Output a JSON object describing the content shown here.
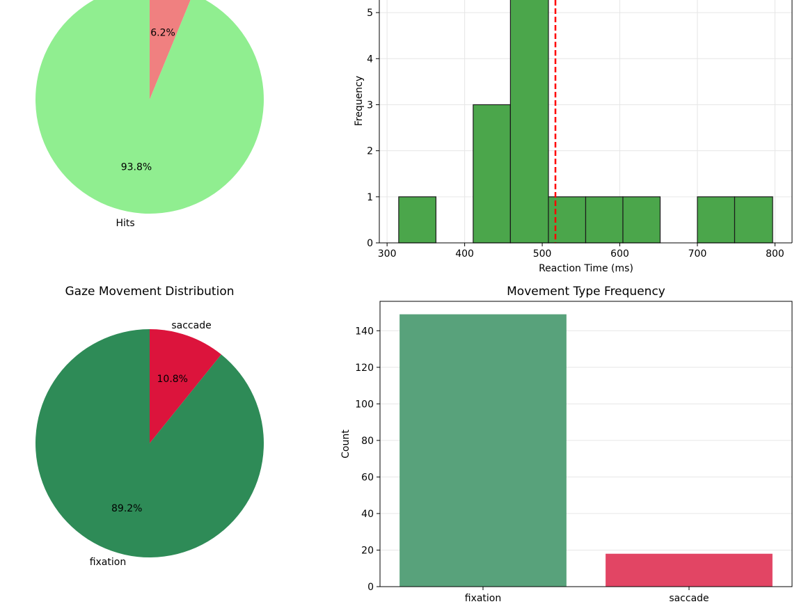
{
  "chart_data": [
    {
      "type": "pie",
      "title": "",
      "slices": [
        {
          "label": "Hits",
          "value": 93.8,
          "pct_label": "93.8%",
          "color": "#90ee90"
        },
        {
          "label": "",
          "value": 6.2,
          "pct_label": "6.2%",
          "color": "#f08080"
        }
      ]
    },
    {
      "type": "bar",
      "subtype": "histogram",
      "title": "",
      "xlabel": "Reaction Time (ms)",
      "ylabel": "Frequency",
      "xlim": [
        290,
        822
      ],
      "ylim": [
        0,
        5.5
      ],
      "xticks": [
        300,
        400,
        500,
        600,
        700,
        800
      ],
      "yticks": [
        0,
        1,
        2,
        3,
        4,
        5
      ],
      "bins": [
        {
          "x0": 315,
          "x1": 363,
          "count": 1
        },
        {
          "x0": 363,
          "x1": 411,
          "count": 0
        },
        {
          "x0": 411,
          "x1": 459,
          "count": 3
        },
        {
          "x0": 459,
          "x1": 508,
          "count": 6
        },
        {
          "x0": 508,
          "x1": 556,
          "count": 1
        },
        {
          "x0": 556,
          "x1": 604,
          "count": 1
        },
        {
          "x0": 604,
          "x1": 652,
          "count": 1
        },
        {
          "x0": 652,
          "x1": 700,
          "count": 0
        },
        {
          "x0": 700,
          "x1": 748,
          "count": 1
        },
        {
          "x0": 748,
          "x1": 797,
          "count": 1
        }
      ],
      "mean_line": 517,
      "bar_color": "#4ba64b",
      "line_color": "#ff0000",
      "grid": true
    },
    {
      "type": "pie",
      "title": "Gaze Movement Distribution",
      "slices": [
        {
          "label": "fixation",
          "value": 89.2,
          "pct_label": "89.2%",
          "color": "#2e8b57"
        },
        {
          "label": "saccade",
          "value": 10.8,
          "pct_label": "10.8%",
          "color": "#dc143c"
        }
      ]
    },
    {
      "type": "bar",
      "title": "Movement Type Frequency",
      "xlabel": "",
      "ylabel": "Count",
      "categories": [
        "fixation",
        "saccade"
      ],
      "values": [
        149,
        18
      ],
      "colors": [
        "#58a27b",
        "#e24564"
      ],
      "ylim": [
        0,
        150
      ],
      "yticks": [
        0,
        20,
        40,
        60,
        80,
        100,
        120,
        140
      ],
      "grid": true
    }
  ]
}
